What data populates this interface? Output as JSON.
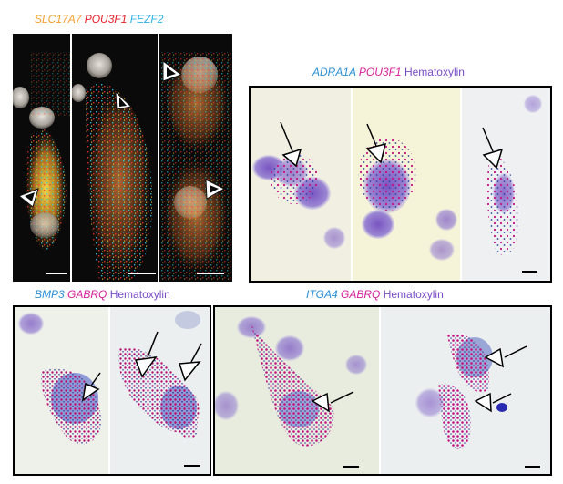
{
  "labels": {
    "fluor": [
      {
        "text": "SLC17A7",
        "color": "#f4a030"
      },
      {
        "text": "POU3F1",
        "color": "#e8202a"
      },
      {
        "text": "FEZF2",
        "color": "#2fb3e6"
      }
    ],
    "adra1a": [
      {
        "text": "ADRA1A",
        "color": "#2a8fd6"
      },
      {
        "text": "POU3F1",
        "color": "#d61f9a"
      },
      {
        "text": "Hematoxylin",
        "color": "#7a4bc8",
        "plain": true
      }
    ],
    "bmp3": [
      {
        "text": "BMP3",
        "color": "#2a8fd6"
      },
      {
        "text": "GABRQ",
        "color": "#d61f9a"
      },
      {
        "text": "Hematoxylin",
        "color": "#7a4bc8",
        "plain": true
      }
    ],
    "itga4": [
      {
        "text": "ITGA4",
        "color": "#2a8fd6"
      },
      {
        "text": "GABRQ",
        "color": "#d61f9a"
      },
      {
        "text": "Hematoxylin",
        "color": "#7a4bc8",
        "plain": true
      }
    ]
  },
  "colors": {
    "fluor_bg": "#0a0a0a",
    "stain_bg": "#eef0ea",
    "nucleus_purple": "#8a73c8",
    "dot_magenta": "#c4137f",
    "dot_blue": "#3340a0"
  }
}
